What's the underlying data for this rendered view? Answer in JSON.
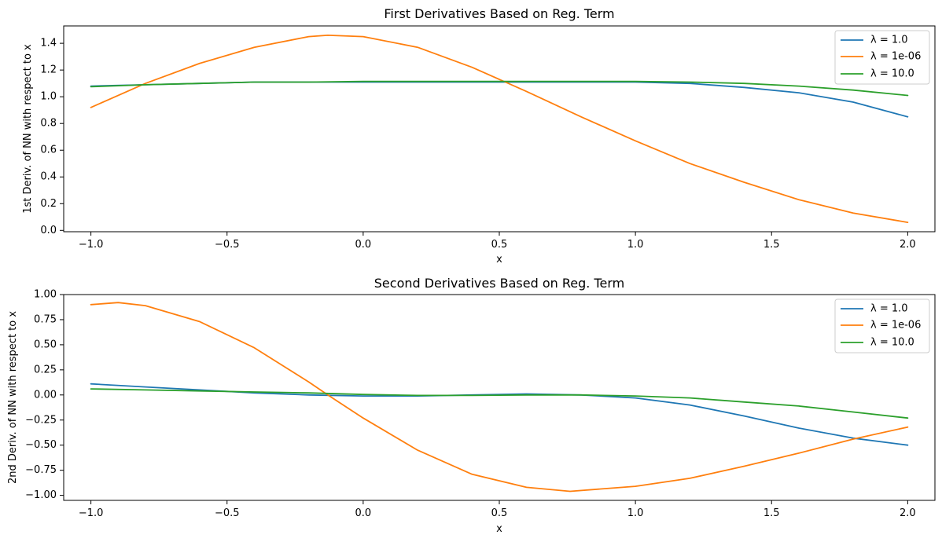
{
  "chart_data": [
    {
      "type": "line",
      "title": "First Derivatives Based on Reg. Term",
      "xlabel": "x",
      "ylabel": "1st Deriv. of NN with respect to x",
      "xlim": [
        -1.1,
        2.1
      ],
      "ylim": [
        -0.01,
        1.53
      ],
      "xticks": [
        -1.0,
        -0.5,
        0.0,
        0.5,
        1.0,
        1.5,
        2.0
      ],
      "xtick_labels": [
        "−1.0",
        "−0.5",
        "0.0",
        "0.5",
        "1.0",
        "1.5",
        "2.0"
      ],
      "yticks": [
        0.0,
        0.2,
        0.4,
        0.6,
        0.8,
        1.0,
        1.2,
        1.4
      ],
      "ytick_labels": [
        "0.0",
        "0.2",
        "0.4",
        "0.6",
        "0.8",
        "1.0",
        "1.2",
        "1.4"
      ],
      "legend": "top-right",
      "series": [
        {
          "name": "λ = 1.0",
          "color": "#1f77b4",
          "x": [
            -1.0,
            -0.8,
            -0.6,
            -0.4,
            -0.2,
            0.0,
            0.2,
            0.4,
            0.6,
            0.8,
            1.0,
            1.2,
            1.4,
            1.6,
            1.8,
            2.0
          ],
          "y": [
            1.08,
            1.09,
            1.1,
            1.11,
            1.11,
            1.11,
            1.11,
            1.11,
            1.11,
            1.11,
            1.11,
            1.1,
            1.07,
            1.03,
            0.96,
            0.85
          ]
        },
        {
          "name": "λ = 1e-06",
          "color": "#ff7f0e",
          "x": [
            -1.0,
            -0.8,
            -0.6,
            -0.4,
            -0.2,
            -0.13,
            0.0,
            0.2,
            0.4,
            0.6,
            0.8,
            1.0,
            1.2,
            1.4,
            1.6,
            1.8,
            2.0
          ],
          "y": [
            0.92,
            1.1,
            1.25,
            1.37,
            1.45,
            1.46,
            1.45,
            1.37,
            1.22,
            1.04,
            0.85,
            0.67,
            0.5,
            0.36,
            0.23,
            0.13,
            0.06
          ]
        },
        {
          "name": "λ = 10.0",
          "color": "#2ca02c",
          "x": [
            -1.0,
            -0.8,
            -0.6,
            -0.4,
            -0.2,
            0.0,
            0.2,
            0.4,
            0.6,
            0.8,
            1.0,
            1.2,
            1.4,
            1.6,
            1.8,
            2.0
          ],
          "y": [
            1.075,
            1.09,
            1.1,
            1.11,
            1.11,
            1.115,
            1.115,
            1.115,
            1.115,
            1.115,
            1.115,
            1.11,
            1.1,
            1.08,
            1.05,
            1.01
          ]
        }
      ]
    },
    {
      "type": "line",
      "title": "Second Derivatives Based on Reg. Term",
      "xlabel": "x",
      "ylabel": "2nd Deriv. of NN with respect to x",
      "xlim": [
        -1.1,
        2.1
      ],
      "ylim": [
        -1.05,
        1.0
      ],
      "xticks": [
        -1.0,
        -0.5,
        0.0,
        0.5,
        1.0,
        1.5,
        2.0
      ],
      "xtick_labels": [
        "−1.0",
        "−0.5",
        "0.0",
        "0.5",
        "1.0",
        "1.5",
        "2.0"
      ],
      "yticks": [
        -1.0,
        -0.75,
        -0.5,
        -0.25,
        0.0,
        0.25,
        0.5,
        0.75,
        1.0
      ],
      "ytick_labels": [
        "−1.00",
        "−0.75",
        "−0.50",
        "−0.25",
        "0.00",
        "0.25",
        "0.50",
        "0.75",
        "1.00"
      ],
      "legend": "top-right",
      "series": [
        {
          "name": "λ = 1.0",
          "color": "#1f77b4",
          "x": [
            -1.0,
            -0.8,
            -0.6,
            -0.4,
            -0.2,
            0.0,
            0.2,
            0.4,
            0.6,
            0.8,
            1.0,
            1.2,
            1.4,
            1.6,
            1.8,
            2.0
          ],
          "y": [
            0.11,
            0.08,
            0.05,
            0.02,
            0.0,
            -0.01,
            -0.01,
            0.0,
            0.01,
            0.0,
            -0.03,
            -0.1,
            -0.21,
            -0.33,
            -0.43,
            -0.5
          ]
        },
        {
          "name": "λ = 1e-06",
          "color": "#ff7f0e",
          "x": [
            -1.0,
            -0.9,
            -0.8,
            -0.6,
            -0.4,
            -0.2,
            -0.13,
            0.0,
            0.2,
            0.4,
            0.6,
            0.76,
            1.0,
            1.2,
            1.4,
            1.6,
            1.8,
            2.0
          ],
          "y": [
            0.9,
            0.92,
            0.89,
            0.73,
            0.47,
            0.13,
            0.0,
            -0.23,
            -0.55,
            -0.79,
            -0.92,
            -0.96,
            -0.91,
            -0.83,
            -0.71,
            -0.58,
            -0.44,
            -0.32
          ]
        },
        {
          "name": "λ = 10.0",
          "color": "#2ca02c",
          "x": [
            -1.0,
            -0.8,
            -0.6,
            -0.4,
            -0.2,
            0.0,
            0.2,
            0.4,
            0.6,
            0.8,
            1.0,
            1.2,
            1.4,
            1.6,
            1.8,
            2.0
          ],
          "y": [
            0.06,
            0.05,
            0.04,
            0.03,
            0.02,
            0.005,
            -0.005,
            -0.005,
            0.0,
            0.0,
            -0.01,
            -0.03,
            -0.07,
            -0.11,
            -0.17,
            -0.23
          ]
        }
      ]
    }
  ]
}
